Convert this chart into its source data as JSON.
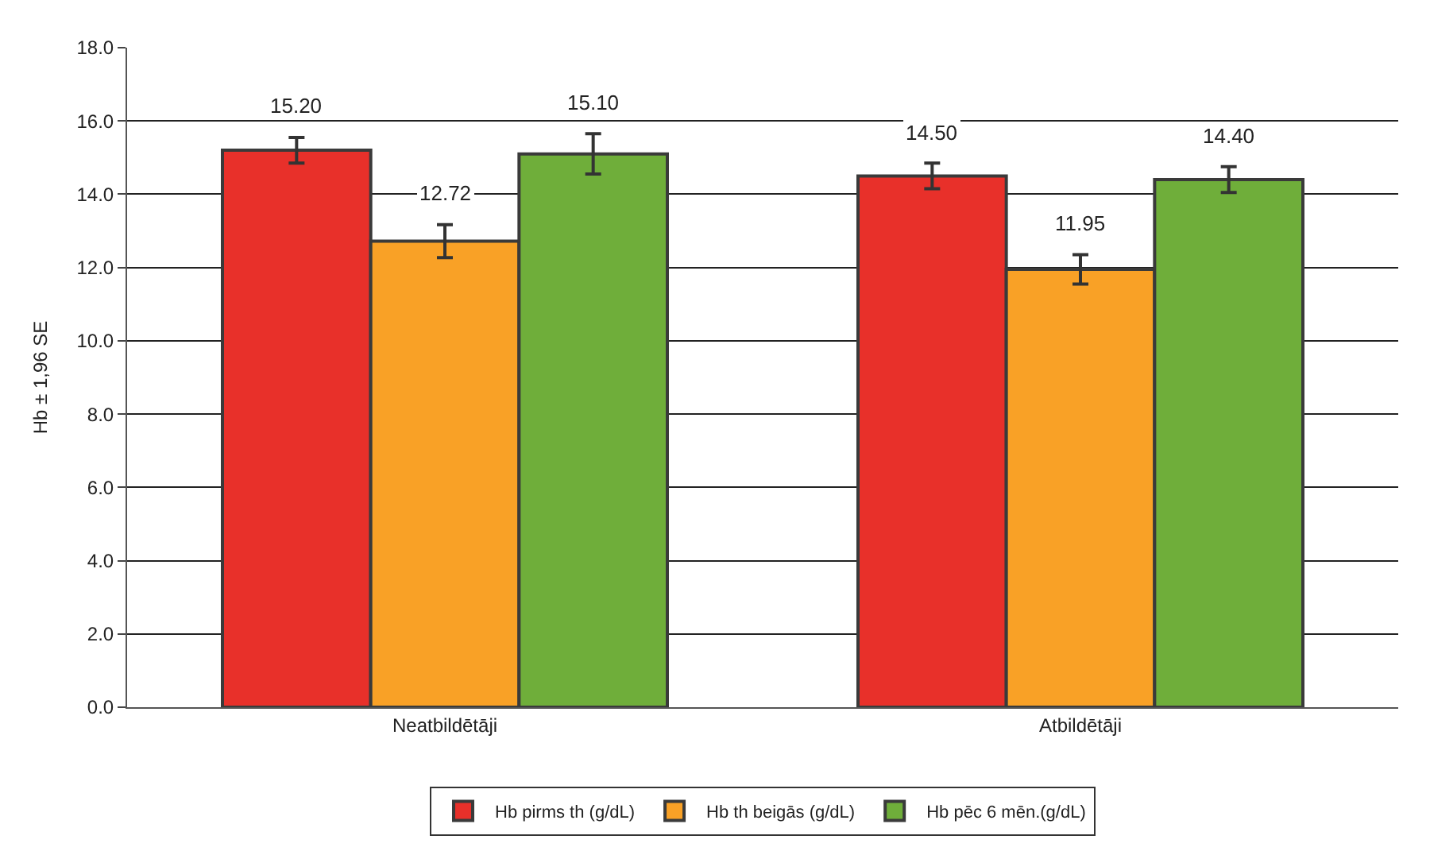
{
  "chart_data": {
    "type": "bar",
    "ylabel": "Hb ± 1,96 SE",
    "categories": [
      "Neatbildētāji",
      "Atbildētāji"
    ],
    "series": [
      {
        "name": "Hb pirms th (g/dL)",
        "color": "#e8302a",
        "values": [
          15.2,
          14.5
        ],
        "errors": [
          0.35,
          0.35
        ],
        "value_labels": [
          "15.20",
          "14.50"
        ]
      },
      {
        "name": "Hb th beigās (g/dL)",
        "color": "#f9a126",
        "values": [
          12.72,
          11.95
        ],
        "errors": [
          0.45,
          0.4
        ],
        "value_labels": [
          "12.72",
          "11.95"
        ]
      },
      {
        "name": "Hb pēc 6 mēn.(g/dL)",
        "color": "#6fae3a",
        "values": [
          15.1,
          14.4
        ],
        "errors": [
          0.55,
          0.35
        ],
        "value_labels": [
          "15.10",
          "14.40"
        ]
      }
    ],
    "ylim": [
      0,
      18
    ],
    "yticks": [
      {
        "value": 0,
        "label": "0.0"
      },
      {
        "value": 2,
        "label": "2.0"
      },
      {
        "value": 4,
        "label": "4.0"
      },
      {
        "value": 6,
        "label": "6.0"
      },
      {
        "value": 8,
        "label": "8.0"
      },
      {
        "value": 10,
        "label": "10.0"
      },
      {
        "value": 12,
        "label": "12.0"
      },
      {
        "value": 14,
        "label": "14.0"
      },
      {
        "value": 16,
        "label": "16.0"
      },
      {
        "value": 18,
        "label": "18.0"
      }
    ],
    "grid": "y",
    "legend": "bottom"
  }
}
